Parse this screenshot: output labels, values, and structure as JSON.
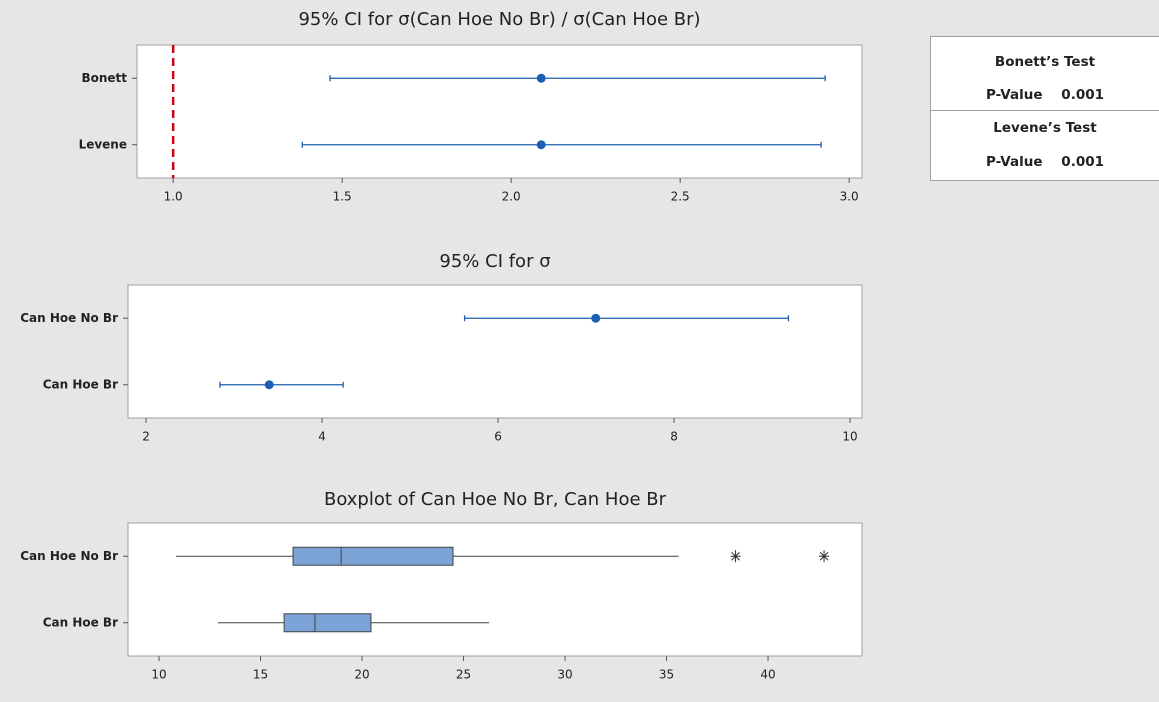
{
  "chart_data": [
    {
      "type": "interval",
      "title": "95% CI for σ(Can Hoe No Br) / σ(Can Hoe Br)",
      "categories": [
        "Bonett",
        "Levene"
      ],
      "values": [
        2.089,
        2.089
      ],
      "lower": [
        1.464,
        1.382
      ],
      "upper": [
        2.929,
        2.917
      ],
      "color": "#1c5fb0",
      "refline": 1,
      "refline_color": "#d0021b",
      "xlim": [
        0.893,
        3.038
      ],
      "xticks": [
        {
          "value": 1,
          "label": "1.0"
        },
        1.5,
        {
          "value": 2,
          "label": "2.0"
        },
        2.5,
        {
          "value": 3,
          "label": "3.0"
        }
      ]
    },
    {
      "type": "interval",
      "title": "95% CI for σ",
      "categories": [
        "Can Hoe No Br",
        "Can Hoe Br"
      ],
      "values": [
        7.11,
        3.4
      ],
      "lower": [
        5.62,
        2.84
      ],
      "upper": [
        9.3,
        4.24
      ],
      "color": "#1c5fb0",
      "xlim": [
        1.795,
        10.136
      ],
      "xticks": [
        2,
        4,
        6,
        8,
        10
      ]
    },
    {
      "type": "boxplot",
      "title": "Boxplot of Can Hoe No Br, Can Hoe Br",
      "categories": [
        "Can Hoe No Br",
        "Can Hoe Br"
      ],
      "boxes": [
        {
          "whislo": 10.84,
          "q1": 16.6,
          "med": 18.97,
          "q3": 24.48,
          "whishi": 35.6,
          "fliers": [
            38.4,
            42.76
          ]
        },
        {
          "whislo": 12.9,
          "q1": 16.16,
          "med": 17.68,
          "q3": 20.44,
          "whishi": 26.26,
          "fliers": []
        }
      ],
      "color": "#7ba3d6",
      "xlim": [
        8.47,
        44.63
      ],
      "xticks": [
        10,
        15,
        20,
        25,
        30,
        35,
        40
      ]
    }
  ],
  "tests": [
    {
      "name": "Bonett’s Test",
      "p_label": "P-Value",
      "p_value": 0.001
    },
    {
      "name": "Levene’s Test",
      "p_label": "P-Value",
      "p_value": 0.001
    }
  ]
}
